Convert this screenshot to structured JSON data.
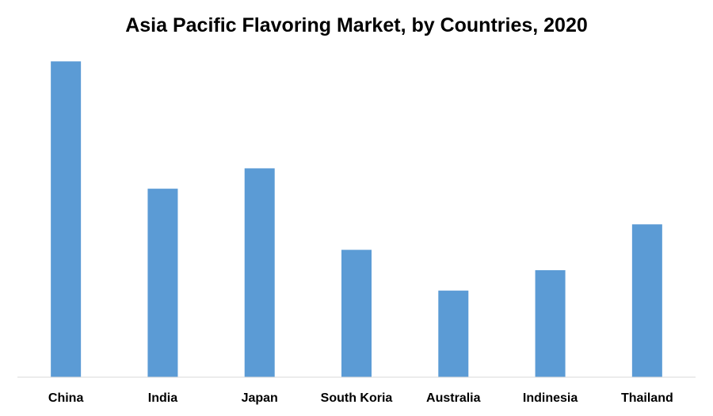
{
  "chart_data": {
    "type": "bar",
    "title": "Asia Pacific Flavoring Market, by Countries, 2020",
    "xlabel": "",
    "ylabel": "",
    "categories": [
      "China",
      "India",
      "Japan",
      "South Koria",
      "Australia",
      "Indinesia",
      "Thailand"
    ],
    "values": [
      31,
      18.5,
      20.5,
      12.5,
      8.5,
      10.5,
      15
    ],
    "ylim": [
      0,
      35
    ],
    "grid": false,
    "legend": "none",
    "y_axis_visible": false,
    "colors": {
      "bar": "#5b9bd5",
      "axis": "#d9d9d9",
      "text": "#000000"
    }
  }
}
